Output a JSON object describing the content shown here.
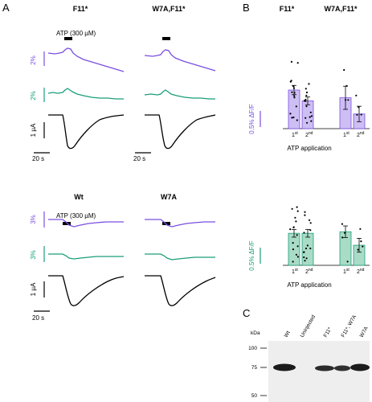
{
  "panels": {
    "A": "A",
    "B": "B",
    "C": "C"
  },
  "colors": {
    "purple": "#7b4fe0",
    "purple_fill": "#cdbef4",
    "green": "#1a9e7a",
    "green_fill": "#a9dcc7",
    "black": "#000000"
  },
  "panel_a": {
    "top_row": {
      "col1_title": "F11*",
      "col2_title": "W7A,F11*",
      "atp_label": "ATP (300 µM)",
      "purple_scale": "2%",
      "green_scale": "2%",
      "current_scale": "1 µA",
      "time_scale": "20 s"
    },
    "bottom_row": {
      "col1_title": "Wt",
      "col2_title": "W7A",
      "atp_label": "ATP (300 µM)",
      "purple_scale": "3%",
      "green_scale": "3%",
      "current_scale": "1 µA",
      "time_scale": "20 s"
    }
  },
  "panel_b": {
    "top_row": {
      "col1_title": "F11*",
      "col2_title": "W7A,F11*"
    },
    "purple_ylabel": "0.5% ΔF/F",
    "green_ylabel": "0.5% ΔF/F",
    "xlabel": "ATP application",
    "tick_1": "1",
    "tick_1_sup": "st",
    "tick_2": "2",
    "tick_2_sup": "nd"
  },
  "chart_data": [
    {
      "type": "bar",
      "title": "",
      "categories": [
        "F11* 1st",
        "F11* 2nd",
        "W7A,F11* 1st",
        "W7A,F11* 2nd"
      ],
      "values": [
        1.0,
        0.72,
        0.8,
        0.38
      ],
      "errors": [
        0.12,
        0.1,
        0.3,
        0.2
      ],
      "xlabel": "ATP application",
      "ylabel": "0.5% ΔF/F",
      "ylim": [
        0,
        2.5
      ]
    },
    {
      "type": "bar",
      "title": "",
      "categories": [
        "F11* 1st",
        "F11* 2nd",
        "W7A,F11* 1st",
        "W7A,F11* 2nd"
      ],
      "values": [
        0.83,
        0.83,
        0.87,
        0.52
      ],
      "errors": [
        0.1,
        0.1,
        0.15,
        0.18
      ],
      "xlabel": "ATP application",
      "ylabel": "0.5% ΔF/F",
      "ylim": [
        0,
        2.5
      ]
    }
  ],
  "panel_c": {
    "kda_label": "kDa",
    "markers": [
      "100",
      "75",
      "50"
    ],
    "lanes": [
      "Wt",
      "Uninjected",
      "F11*",
      "F11*, W7A",
      "W7A"
    ]
  }
}
